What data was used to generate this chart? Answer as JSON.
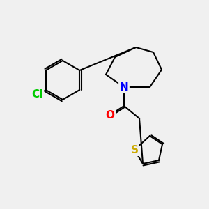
{
  "bg_color": "#f0f0f0",
  "bond_color": "#000000",
  "bond_width": 1.5,
  "atom_colors": {
    "Cl": "#00cc00",
    "N": "#0000ff",
    "O": "#ff0000",
    "S": "#ccaa00",
    "C": "#000000"
  },
  "font_size": 11,
  "figsize": [
    3.0,
    3.0
  ],
  "dpi": 100
}
